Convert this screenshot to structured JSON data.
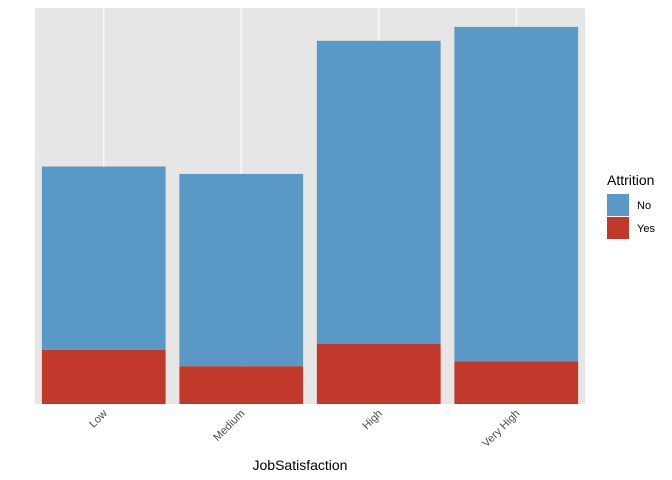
{
  "chart_data": {
    "type": "bar",
    "stacked": true,
    "xlabel": "JobSatisfaction",
    "ylabel": "",
    "categories": [
      "Low",
      "Medium",
      "High",
      "Very High"
    ],
    "series": [
      {
        "name": "No",
        "color": "#5a98c5",
        "values": [
          223,
          234,
          369,
          407
        ]
      },
      {
        "name": "Yes",
        "color": "#c0392b",
        "values": [
          66,
          46,
          73,
          52
        ]
      }
    ],
    "legend": {
      "title": "Attrition",
      "position": "right"
    },
    "panel_background": "#e6e6e6",
    "grid": true
  }
}
